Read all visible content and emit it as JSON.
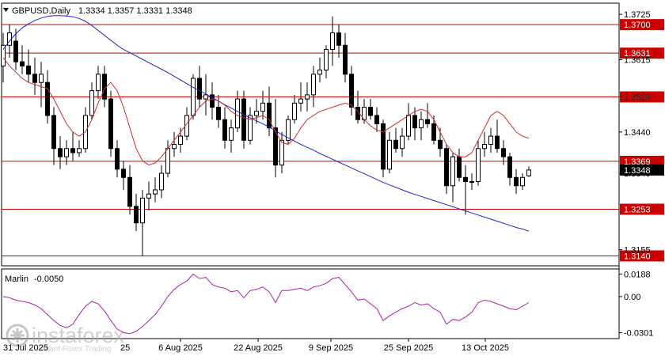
{
  "header": {
    "symbol": "GBPUSD,Daily",
    "ohlc": "1.3334 1.3357 1.3331 1.3348"
  },
  "indicator": {
    "name": "Marlin",
    "value": "-0.0050"
  },
  "colors": {
    "candle_up": "#ffffff",
    "candle_down": "#000000",
    "ma_blue": "#1b25cc",
    "envelope_red": "#d42a2a",
    "level_line": "#cc0000",
    "osc_line": "#aa22aa",
    "grid": "#000000"
  },
  "watermark": {
    "brand": "instaforex",
    "tagline": "Instant Forex Trading"
  },
  "chart_data": [
    {
      "type": "candlestick",
      "title": "GBPUSD,Daily",
      "ylim": [
        1.3116,
        1.3752
      ],
      "y_ticks": [
        "1.3725",
        "1.3615",
        "1.3525",
        "1.3440",
        "1.3340",
        "1.3155"
      ],
      "horizontal_levels": [
        {
          "value": 1.37,
          "label": "1.3700"
        },
        {
          "value": 1.3631,
          "label": "1.3631"
        },
        {
          "value": 1.3525,
          "label": "1.3525"
        },
        {
          "value": 1.3369,
          "label": "1.3369"
        },
        {
          "value": 1.3253,
          "label": "1.3253"
        },
        {
          "value": 1.314,
          "label": "1.3140"
        }
      ],
      "current_price": {
        "value": 1.3348,
        "label": "1.3348"
      },
      "x_labels": [
        "6 Aug 2025",
        "22 Aug 2025",
        "9 Sep 2025",
        "25 Sep 2025",
        "13 Oct 2025"
      ],
      "x_left_partial": "31 Jul 2025",
      "x_left_partial_2": "25",
      "candles": [
        [
          1.36,
          1.368,
          1.356,
          1.365
        ],
        [
          1.365,
          1.37,
          1.362,
          1.368
        ],
        [
          1.366,
          1.369,
          1.359,
          1.361
        ],
        [
          1.361,
          1.365,
          1.358,
          1.36
        ],
        [
          1.36,
          1.364,
          1.356,
          1.358
        ],
        [
          1.358,
          1.362,
          1.353,
          1.356
        ],
        [
          1.356,
          1.361,
          1.35,
          1.358
        ],
        [
          1.356,
          1.359,
          1.346,
          1.348
        ],
        [
          1.348,
          1.35,
          1.336,
          1.34
        ],
        [
          1.34,
          1.343,
          1.335,
          1.338
        ],
        [
          1.338,
          1.342,
          1.336,
          1.34
        ],
        [
          1.34,
          1.344,
          1.337,
          1.339
        ],
        [
          1.339,
          1.342,
          1.338,
          1.34
        ],
        [
          1.34,
          1.35,
          1.339,
          1.348
        ],
        [
          1.348,
          1.356,
          1.347,
          1.354
        ],
        [
          1.354,
          1.36,
          1.352,
          1.358
        ],
        [
          1.358,
          1.36,
          1.35,
          1.352
        ],
        [
          1.352,
          1.354,
          1.338,
          1.34
        ],
        [
          1.34,
          1.342,
          1.333,
          1.335
        ],
        [
          1.335,
          1.337,
          1.33,
          1.333
        ],
        [
          1.333,
          1.336,
          1.324,
          1.326
        ],
        [
          1.326,
          1.329,
          1.32,
          1.322
        ],
        [
          1.322,
          1.33,
          1.314,
          1.328
        ],
        [
          1.328,
          1.332,
          1.325,
          1.329
        ],
        [
          1.329,
          1.333,
          1.327,
          1.33
        ],
        [
          1.33,
          1.336,
          1.328,
          1.334
        ],
        [
          1.334,
          1.342,
          1.333,
          1.34
        ],
        [
          1.34,
          1.344,
          1.338,
          1.341
        ],
        [
          1.341,
          1.345,
          1.339,
          1.343
        ],
        [
          1.343,
          1.35,
          1.342,
          1.348
        ],
        [
          1.348,
          1.358,
          1.347,
          1.357
        ],
        [
          1.357,
          1.36,
          1.35,
          1.352
        ],
        [
          1.352,
          1.358,
          1.348,
          1.353
        ],
        [
          1.353,
          1.356,
          1.347,
          1.35
        ],
        [
          1.35,
          1.353,
          1.345,
          1.347
        ],
        [
          1.347,
          1.35,
          1.34,
          1.342
        ],
        [
          1.342,
          1.347,
          1.339,
          1.345
        ],
        [
          1.345,
          1.354,
          1.344,
          1.352
        ],
        [
          1.352,
          1.354,
          1.34,
          1.342
        ],
        [
          1.342,
          1.35,
          1.341,
          1.348
        ],
        [
          1.348,
          1.352,
          1.346,
          1.349
        ],
        [
          1.349,
          1.354,
          1.347,
          1.351
        ],
        [
          1.351,
          1.355,
          1.343,
          1.345
        ],
        [
          1.345,
          1.352,
          1.333,
          1.336
        ],
        [
          1.336,
          1.344,
          1.334,
          1.342
        ],
        [
          1.342,
          1.348,
          1.341,
          1.347
        ],
        [
          1.347,
          1.353,
          1.346,
          1.351
        ],
        [
          1.351,
          1.356,
          1.349,
          1.352
        ],
        [
          1.352,
          1.356,
          1.349,
          1.353
        ],
        [
          1.353,
          1.36,
          1.35,
          1.358
        ],
        [
          1.358,
          1.362,
          1.356,
          1.359
        ],
        [
          1.359,
          1.365,
          1.357,
          1.364
        ],
        [
          1.364,
          1.372,
          1.36,
          1.368
        ],
        [
          1.368,
          1.37,
          1.362,
          1.365
        ],
        [
          1.365,
          1.368,
          1.356,
          1.358
        ],
        [
          1.358,
          1.36,
          1.348,
          1.35
        ],
        [
          1.35,
          1.354,
          1.346,
          1.347
        ],
        [
          1.347,
          1.352,
          1.346,
          1.35
        ],
        [
          1.35,
          1.352,
          1.347,
          1.348
        ],
        [
          1.348,
          1.35,
          1.344,
          1.346
        ],
        [
          1.346,
          1.347,
          1.333,
          1.335
        ],
        [
          1.335,
          1.344,
          1.334,
          1.342
        ],
        [
          1.342,
          1.345,
          1.339,
          1.34
        ],
        [
          1.34,
          1.345,
          1.338,
          1.343
        ],
        [
          1.343,
          1.351,
          1.342,
          1.348
        ],
        [
          1.348,
          1.35,
          1.342,
          1.345
        ],
        [
          1.345,
          1.349,
          1.342,
          1.347
        ],
        [
          1.347,
          1.351,
          1.345,
          1.346
        ],
        [
          1.346,
          1.348,
          1.341,
          1.342
        ],
        [
          1.342,
          1.345,
          1.338,
          1.34
        ],
        [
          1.34,
          1.341,
          1.329,
          1.331
        ],
        [
          1.331,
          1.339,
          1.327,
          1.338
        ],
        [
          1.338,
          1.34,
          1.332,
          1.333
        ],
        [
          1.333,
          1.336,
          1.324,
          1.332
        ],
        [
          1.332,
          1.334,
          1.33,
          1.332
        ],
        [
          1.332,
          1.342,
          1.331,
          1.34
        ],
        [
          1.34,
          1.344,
          1.338,
          1.341
        ],
        [
          1.341,
          1.345,
          1.339,
          1.343
        ],
        [
          1.343,
          1.347,
          1.339,
          1.34
        ],
        [
          1.34,
          1.342,
          1.336,
          1.338
        ],
        [
          1.338,
          1.339,
          1.331,
          1.333
        ],
        [
          1.333,
          1.335,
          1.329,
          1.331
        ],
        [
          1.331,
          1.334,
          1.33,
          1.333
        ],
        [
          1.3334,
          1.3357,
          1.3331,
          1.3348
        ]
      ],
      "ma_blue": [
        1.364,
        1.366,
        1.3678,
        1.3692,
        1.3702,
        1.371,
        1.3716,
        1.372,
        1.3722,
        1.3722,
        1.3721,
        1.3719,
        1.3715,
        1.3708,
        1.3698,
        1.3686,
        1.3674,
        1.3662,
        1.365,
        1.364,
        1.3632,
        1.3624,
        1.3616,
        1.3608,
        1.36,
        1.3592,
        1.3584,
        1.3575,
        1.3566,
        1.3557,
        1.3548,
        1.354,
        1.3532,
        1.3523,
        1.3515,
        1.3506,
        1.3498,
        1.349,
        1.3482,
        1.3474,
        1.3467,
        1.346,
        1.3452,
        1.3443,
        1.3434,
        1.3426,
        1.3418,
        1.341,
        1.3403,
        1.3396,
        1.3388,
        1.3381,
        1.3374,
        1.3367,
        1.336,
        1.3353,
        1.3346,
        1.3339,
        1.3332,
        1.3325,
        1.3318,
        1.3312,
        1.3306,
        1.33,
        1.3294,
        1.3289,
        1.3284,
        1.3279,
        1.3274,
        1.3269,
        1.3264,
        1.3259,
        1.3254,
        1.3249,
        1.3244,
        1.3239,
        1.3234,
        1.3229,
        1.3224,
        1.3219,
        1.3214,
        1.3209,
        1.3205,
        1.32
      ],
      "env_red": [
        1.362,
        1.36,
        1.3585,
        1.357,
        1.356,
        1.3555,
        1.355,
        1.3545,
        1.352,
        1.349,
        1.346,
        1.344,
        1.343,
        1.344,
        1.347,
        1.351,
        1.3545,
        1.356,
        1.354,
        1.35,
        1.345,
        1.34,
        1.337,
        1.336,
        1.3365,
        1.338,
        1.34,
        1.342,
        1.344,
        1.346,
        1.348,
        1.35,
        1.3515,
        1.352,
        1.3515,
        1.3505,
        1.349,
        1.348,
        1.3475,
        1.347,
        1.3475,
        1.348,
        1.347,
        1.344,
        1.3415,
        1.341,
        1.3425,
        1.345,
        1.347,
        1.348,
        1.349,
        1.3495,
        1.35,
        1.3505,
        1.351,
        1.3505,
        1.349,
        1.347,
        1.3455,
        1.3445,
        1.344,
        1.345,
        1.346,
        1.347,
        1.348,
        1.349,
        1.3495,
        1.349,
        1.347,
        1.344,
        1.341,
        1.339,
        1.338,
        1.338,
        1.339,
        1.342,
        1.345,
        1.348,
        1.349,
        1.348,
        1.346,
        1.344,
        1.343,
        1.3425
      ]
    },
    {
      "type": "line",
      "title": "Marlin -0.0050",
      "ylim": [
        -0.035,
        0.023
      ],
      "y_ticks": [
        "0.0188",
        "0.00",
        "-0.0301"
      ],
      "values": [
        0.0,
        -0.001,
        -0.003,
        -0.004,
        -0.005,
        -0.007,
        -0.01,
        -0.015,
        -0.02,
        -0.024,
        -0.026,
        -0.023,
        -0.015,
        -0.008,
        -0.004,
        -0.006,
        -0.012,
        -0.02,
        -0.027,
        -0.03,
        -0.031,
        -0.029,
        -0.025,
        -0.02,
        -0.015,
        -0.008,
        0.0,
        0.006,
        0.01,
        0.013,
        0.0188,
        0.015,
        0.016,
        0.01,
        0.008,
        0.007,
        0.004,
        0.005,
        -0.001,
        0.005,
        0.006,
        0.008,
        0.004,
        -0.005,
        0.005,
        0.005,
        0.006,
        0.007,
        0.005,
        0.008,
        0.009,
        0.011,
        0.015,
        0.016,
        0.01,
        0.004,
        -0.003,
        -0.002,
        -0.006,
        -0.01,
        -0.02,
        -0.016,
        -0.013,
        -0.01,
        -0.008,
        -0.005,
        -0.007,
        -0.006,
        -0.01,
        -0.013,
        -0.023,
        -0.019,
        -0.02,
        -0.017,
        -0.013,
        -0.005,
        -0.003,
        -0.004,
        -0.006,
        -0.008,
        -0.01,
        -0.011,
        -0.008,
        -0.005
      ]
    }
  ]
}
